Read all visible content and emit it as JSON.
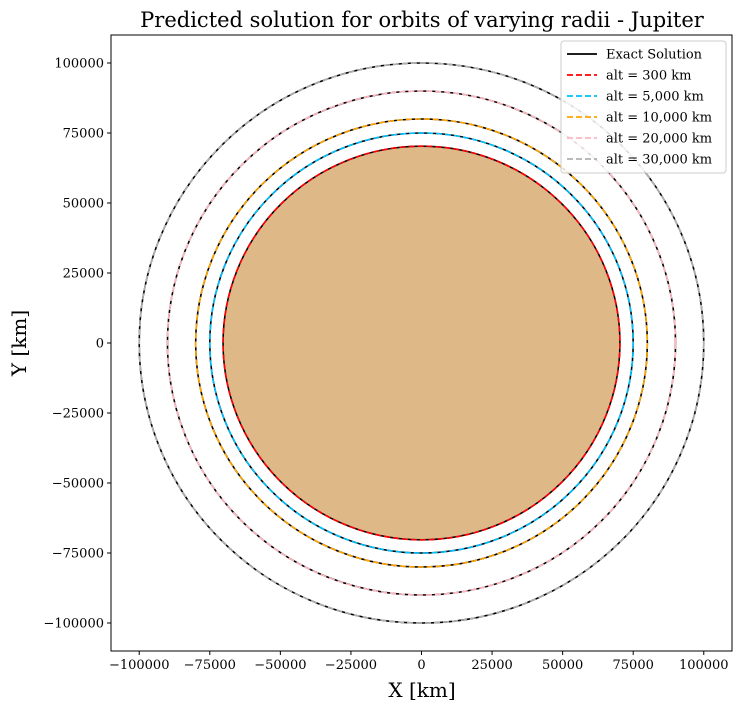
{
  "chart_data": {
    "type": "line",
    "title": "Predicted solution for orbits of varying radii - Jupiter",
    "xlabel": "X [km]",
    "ylabel": "Y [km]",
    "xlim": [
      -110000,
      110000
    ],
    "ylim": [
      -110000,
      110000
    ],
    "xticks": [
      -100000,
      -75000,
      -50000,
      -25000,
      0,
      25000,
      50000,
      75000,
      100000
    ],
    "yticks": [
      -100000,
      -75000,
      -50000,
      -25000,
      0,
      25000,
      50000,
      75000,
      100000
    ],
    "xtick_labels": [
      "−100000",
      "−75000",
      "−50000",
      "−25000",
      "0",
      "25000",
      "50000",
      "75000",
      "100000"
    ],
    "ytick_labels": [
      "−100000",
      "−75000",
      "−50000",
      "−25000",
      "0",
      "25000",
      "50000",
      "75000",
      "100000"
    ],
    "grid": false,
    "legend_position": "top-right",
    "planet": {
      "radius_km": 70000,
      "color": "#deb887"
    },
    "exact_radii_km": [
      70300,
      75000,
      80000,
      90000,
      100000
    ],
    "series": [
      {
        "name": "Exact Solution",
        "radius_km": null,
        "color": "#000000",
        "dash": "solid"
      },
      {
        "name": "alt = 300 km",
        "radius_km": 70300,
        "color": "#ff0000",
        "dash": "dashed"
      },
      {
        "name": "alt = 5,000 km",
        "radius_km": 75000,
        "color": "#00bfff",
        "dash": "dashed"
      },
      {
        "name": "alt = 10,000 km",
        "radius_km": 80000,
        "color": "#ffa500",
        "dash": "dashed"
      },
      {
        "name": "alt = 20,000 km",
        "radius_km": 90000,
        "color": "#ffb6c1",
        "dash": "dashed"
      },
      {
        "name": "alt = 30,000 km",
        "radius_km": 100000,
        "color": "#b0b0b0",
        "dash": "dashed"
      }
    ]
  }
}
